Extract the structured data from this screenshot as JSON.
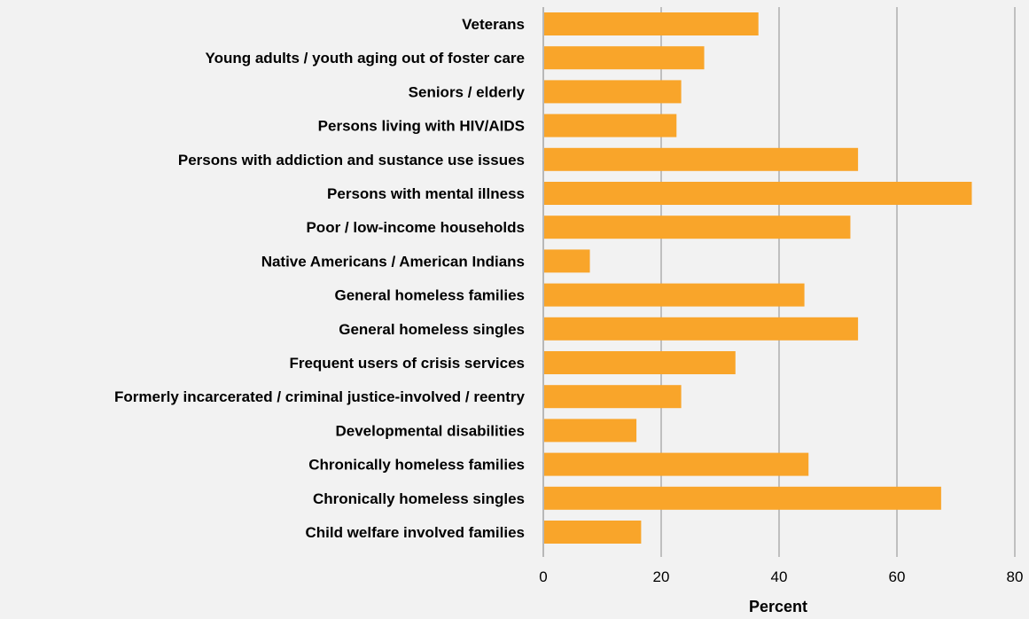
{
  "chart_data": {
    "type": "bar",
    "orientation": "horizontal",
    "title": "",
    "xlabel": "Percent",
    "ylabel": "",
    "xlim": [
      0,
      80
    ],
    "x_ticks": [
      0,
      20,
      40,
      60,
      80
    ],
    "grid": "vertical",
    "legend": "none",
    "bar_color": "#f9a52a",
    "categories": [
      "Veterans",
      "Young adults / youth aging out of foster care",
      "Seniors / elderly",
      "Persons living with HIV/AIDS",
      "Persons with addiction and sustance use issues",
      "Persons with mental illness",
      "Poor / low-income households",
      "Native Americans / American Indians",
      "General homeless families",
      "General homeless singles",
      "Frequent users of crisis services",
      "Formerly incarcerated / criminal justice-involved / reentry",
      "Developmental disabilities",
      "Chronically homeless families",
      "Chronically homeless singles",
      "Child welfare involved families"
    ],
    "values": [
      36.5,
      27.3,
      23.4,
      22.6,
      53.4,
      72.7,
      52.1,
      7.9,
      44.3,
      53.4,
      32.6,
      23.4,
      15.8,
      45.0,
      67.5,
      16.6
    ]
  }
}
